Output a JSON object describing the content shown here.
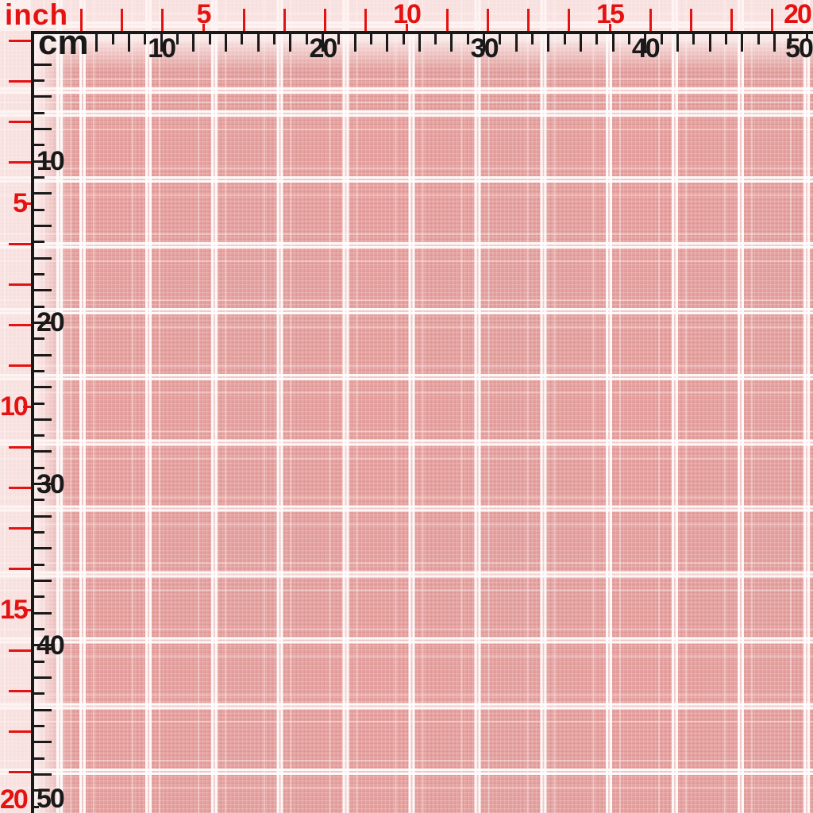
{
  "fabric": {
    "pattern": "windowpane-check",
    "base_color": "#e6a2a0",
    "check_line_color": "#f6f2f0"
  },
  "rulers": {
    "inch_unit": "inch",
    "cm_unit": "cm",
    "inch_color": "#e41210",
    "cm_color": "#191919",
    "top": {
      "inch_labels": [
        "5",
        "10",
        "15",
        "20"
      ],
      "cm_labels": [
        "10",
        "20",
        "30",
        "40",
        "50"
      ]
    },
    "left": {
      "inch_labels": [
        "5",
        "10",
        "15",
        "20"
      ],
      "cm_labels": [
        "10",
        "20",
        "30",
        "40",
        "50"
      ]
    }
  }
}
